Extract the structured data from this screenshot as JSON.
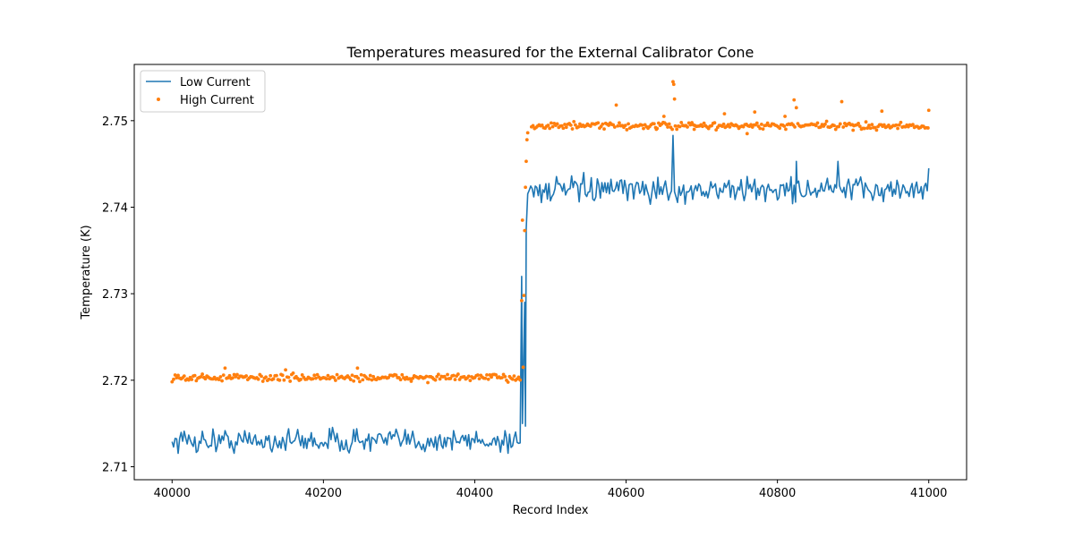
{
  "chart_data": {
    "type": "line",
    "title": "Temperatures measured for the External Calibrator Cone",
    "xlabel": "Record Index",
    "ylabel": "Temperature (K)",
    "xlim": [
      39950,
      41050
    ],
    "ylim": [
      2.7085,
      2.7565
    ],
    "xticks": [
      40000,
      40200,
      40400,
      40600,
      40800,
      41000
    ],
    "yticks": [
      2.71,
      2.72,
      2.73,
      2.74,
      2.75
    ],
    "ytick_labels": [
      "2.71",
      "2.72",
      "2.73",
      "2.74",
      "2.75"
    ],
    "legend_position": "upper-left",
    "grid": false,
    "series": [
      {
        "name": "Low Current",
        "style": "line",
        "color": "#1f77b4",
        "segments": [
          {
            "x_start": 40000,
            "x_end": 40460,
            "mean": 2.713,
            "noise": 0.0007
          },
          {
            "x_start": 40470,
            "x_end": 41000,
            "mean": 2.742,
            "noise": 0.0007
          }
        ],
        "anomalies": [
          [
            40462,
            2.732
          ],
          [
            40463,
            2.715
          ],
          [
            40466,
            2.729
          ],
          [
            40467,
            2.7147
          ],
          [
            40468,
            2.7375
          ],
          [
            40662,
            2.7483
          ],
          [
            40825,
            2.7453
          ],
          [
            40880,
            2.7453
          ],
          [
            41000,
            2.7445
          ]
        ]
      },
      {
        "name": "High Current",
        "style": "scatter",
        "color": "#ff7f0e",
        "segments": [
          {
            "x_start": 40000,
            "x_end": 40460,
            "mean": 2.7203,
            "noise": 0.0002
          },
          {
            "x_start": 40475,
            "x_end": 41000,
            "mean": 2.7494,
            "noise": 0.0002
          }
        ],
        "anomalies": [
          [
            40462,
            2.7292
          ],
          [
            40463,
            2.7385
          ],
          [
            40464,
            2.7215
          ],
          [
            40465,
            2.7298
          ],
          [
            40466,
            2.7373
          ],
          [
            40467,
            2.7423
          ],
          [
            40468,
            2.7453
          ],
          [
            40469,
            2.7478
          ],
          [
            40470,
            2.7486
          ],
          [
            40070,
            2.7214
          ],
          [
            40150,
            2.7212
          ],
          [
            40245,
            2.7214
          ],
          [
            40587,
            2.7518
          ],
          [
            40662,
            2.7545
          ],
          [
            40663,
            2.7542
          ],
          [
            40664,
            2.7525
          ],
          [
            40822,
            2.7524
          ],
          [
            40825,
            2.7515
          ],
          [
            40885,
            2.7522
          ],
          [
            40650,
            2.7505
          ],
          [
            40730,
            2.7508
          ],
          [
            40770,
            2.751
          ],
          [
            40760,
            2.7485
          ],
          [
            40810,
            2.7505
          ],
          [
            40900,
            2.7489
          ],
          [
            40938,
            2.7511
          ],
          [
            41000,
            2.7512
          ],
          [
            40640,
            2.749
          ],
          [
            40690,
            2.749
          ]
        ]
      }
    ]
  }
}
